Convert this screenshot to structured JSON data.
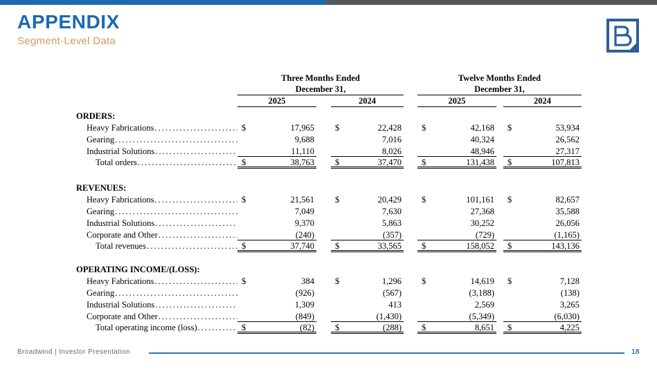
{
  "colors": {
    "brand_blue": "#1b6aad",
    "bar_gray": "#54585a",
    "subtitle_orange": "#d19b5e",
    "footer_blue": "#2e74b5",
    "footer_gray": "#6a6a6a",
    "logo_blue": "#2d5f96",
    "table_text": "#000000"
  },
  "header": {
    "title": "APPENDIX",
    "subtitle": "Segment-Level Data"
  },
  "icons": {
    "logo": "broadwind-b-logo"
  },
  "table": {
    "currency_symbol": "$",
    "leader_dots": "..............................................................................................................",
    "groups": [
      {
        "period": "Three Months Ended",
        "date": "December 31,",
        "years": [
          "2025",
          "2024"
        ]
      },
      {
        "period": "Twelve Months Ended",
        "date": "December 31,",
        "years": [
          "2025",
          "2024"
        ]
      }
    ],
    "sections": [
      {
        "name": "ORDERS:",
        "rows": [
          {
            "label": "Heavy Fabrications",
            "dollar": true,
            "values": [
              "17,965",
              "22,428",
              "42,168",
              "53,934"
            ]
          },
          {
            "label": "Gearing",
            "dollar": false,
            "values": [
              "9,688",
              "7,016",
              "40,324",
              "26,562"
            ]
          },
          {
            "label": "Industrial Solutions",
            "dollar": false,
            "rule": true,
            "values": [
              "11,110",
              "8,026",
              "48,946",
              "27,317"
            ]
          },
          {
            "label": "Total orders",
            "dollar": true,
            "total": true,
            "values": [
              "38,763",
              "37,470",
              "131,438",
              "107,813"
            ]
          }
        ]
      },
      {
        "name": "REVENUES:",
        "rows": [
          {
            "label": "Heavy Fabrications",
            "dollar": true,
            "values": [
              "21,561",
              "20,429",
              "101,161",
              "82,657"
            ]
          },
          {
            "label": "Gearing",
            "dollar": false,
            "values": [
              "7,049",
              "7,630",
              "27,368",
              "35,588"
            ]
          },
          {
            "label": "Industrial Solutions",
            "dollar": false,
            "values": [
              "9,370",
              "5,863",
              "30,252",
              "26,056"
            ]
          },
          {
            "label": "Corporate and Other",
            "dollar": false,
            "rule": true,
            "values": [
              "(240)",
              "(357)",
              "(729)",
              "(1,165)"
            ]
          },
          {
            "label": "Total revenues",
            "dollar": true,
            "total": true,
            "values": [
              "37,740",
              "33,565",
              "158,052",
              "143,136"
            ]
          }
        ]
      },
      {
        "name": "OPERATING INCOME/(LOSS):",
        "rows": [
          {
            "label": "Heavy Fabrications",
            "dollar": true,
            "values": [
              "384",
              "1,296",
              "14,619",
              "7,128"
            ]
          },
          {
            "label": "Gearing",
            "dollar": false,
            "values": [
              "(926)",
              "(567)",
              "(3,188)",
              "(138)"
            ]
          },
          {
            "label": "Industrial Solutions",
            "dollar": false,
            "values": [
              "1,309",
              "413",
              "2,569",
              "3,265"
            ]
          },
          {
            "label": "Corporate and Other",
            "dollar": false,
            "rule": true,
            "values": [
              "(849)",
              "(1,430)",
              "(5,349)",
              "(6,030)"
            ]
          },
          {
            "label": "Total operating income (loss)",
            "dollar": true,
            "total": true,
            "values": [
              "(82)",
              "(288)",
              "8,651",
              "4,225"
            ]
          }
        ]
      }
    ]
  },
  "footer": {
    "brand": "Broadwind | Investor Presentation",
    "page": "18"
  }
}
